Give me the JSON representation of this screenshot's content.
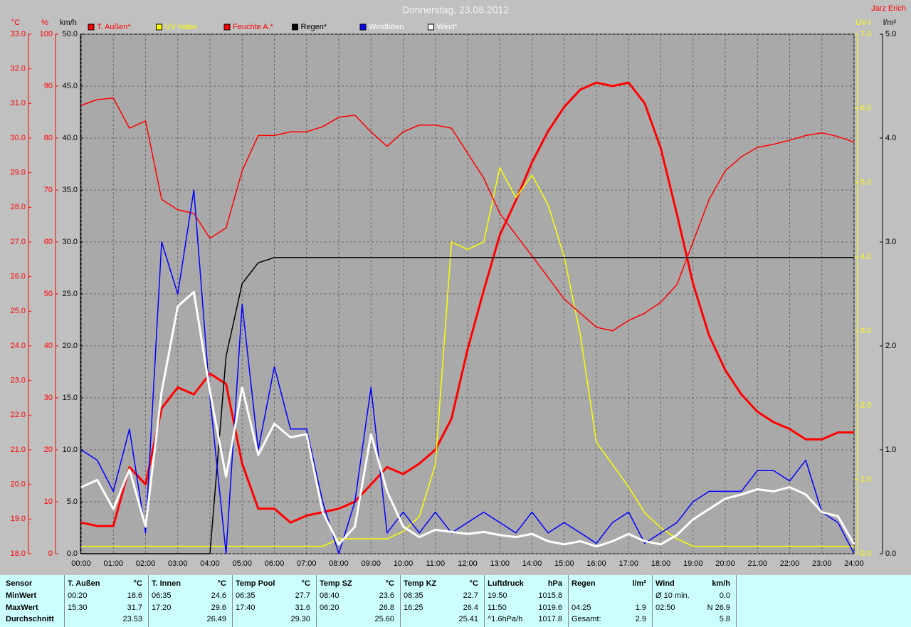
{
  "chart_data": {
    "type": "line",
    "title": "Donnerstag, 23.08.2012",
    "author": "Jarz Erich",
    "grid": true,
    "x": [
      0,
      0.5,
      1,
      1.5,
      2,
      2.5,
      3,
      3.5,
      4,
      4.5,
      5,
      5.5,
      6,
      6.5,
      7,
      7.5,
      8,
      8.5,
      9,
      9.5,
      10,
      10.5,
      11,
      11.5,
      12,
      12.5,
      13,
      13.5,
      14,
      14.5,
      15,
      15.5,
      16,
      16.5,
      17,
      17.5,
      18,
      18.5,
      19,
      19.5,
      20,
      20.5,
      21,
      21.5,
      22,
      22.5,
      23,
      23.5,
      24
    ],
    "xlim": [
      0,
      24
    ],
    "xticks": [
      {
        "value": 0,
        "label": "00:00"
      },
      {
        "value": 1,
        "label": "01:00"
      },
      {
        "value": 2,
        "label": "02:00"
      },
      {
        "value": 3,
        "label": "03:00"
      },
      {
        "value": 4,
        "label": "04:00"
      },
      {
        "value": 5,
        "label": "05:00"
      },
      {
        "value": 6,
        "label": "06:00"
      },
      {
        "value": 7,
        "label": "07:00"
      },
      {
        "value": 8,
        "label": "08:00"
      },
      {
        "value": 9,
        "label": "09:00"
      },
      {
        "value": 10,
        "label": "10:00"
      },
      {
        "value": 11,
        "label": "11:00"
      },
      {
        "value": 12,
        "label": "12:00"
      },
      {
        "value": 13,
        "label": "13:00"
      },
      {
        "value": 14,
        "label": "14:00"
      },
      {
        "value": 15,
        "label": "15:00"
      },
      {
        "value": 16,
        "label": "16:00"
      },
      {
        "value": 17,
        "label": "17:00"
      },
      {
        "value": 18,
        "label": "18:00"
      },
      {
        "value": 19,
        "label": "19:00"
      },
      {
        "value": 20,
        "label": "20:00"
      },
      {
        "value": 21,
        "label": "21:00"
      },
      {
        "value": 22,
        "label": "22:00"
      },
      {
        "value": 23,
        "label": "23:00"
      },
      {
        "value": 24,
        "label": "24:00"
      }
    ],
    "axes": {
      "temp": {
        "label": "°C",
        "color": "#ff0000",
        "lim": [
          18,
          33
        ],
        "ticks": [
          {
            "value": 18,
            "label": "18.0"
          },
          {
            "value": 19,
            "label": "19.0"
          },
          {
            "value": 20,
            "label": "20.0"
          },
          {
            "value": 21,
            "label": "21.0"
          },
          {
            "value": 22,
            "label": "22.0"
          },
          {
            "value": 23,
            "label": "23.0"
          },
          {
            "value": 24,
            "label": "24.0"
          },
          {
            "value": 25,
            "label": "25.0"
          },
          {
            "value": 26,
            "label": "26.0"
          },
          {
            "value": 27,
            "label": "27.0"
          },
          {
            "value": 28,
            "label": "28.0"
          },
          {
            "value": 29,
            "label": "29.0"
          },
          {
            "value": 30,
            "label": "30.0"
          },
          {
            "value": 31,
            "label": "31.0"
          },
          {
            "value": 32,
            "label": "32.0"
          },
          {
            "value": 33,
            "label": "33.0"
          }
        ]
      },
      "hum": {
        "label": "%",
        "color": "#ff0000",
        "lim": [
          0,
          100
        ],
        "ticks": [
          0,
          10,
          20,
          30,
          40,
          50,
          60,
          70,
          80,
          90,
          100
        ]
      },
      "wind": {
        "label": "km/h",
        "color": "#000000",
        "lim": [
          0,
          50
        ],
        "ticks": [
          {
            "value": 0,
            "label": "0.0"
          },
          {
            "value": 5,
            "label": "5.0"
          },
          {
            "value": 10,
            "label": "10.0"
          },
          {
            "value": 15,
            "label": "15.0"
          },
          {
            "value": 20,
            "label": "20.0"
          },
          {
            "value": 25,
            "label": "25.0"
          },
          {
            "value": 30,
            "label": "30.0"
          },
          {
            "value": 35,
            "label": "35.0"
          },
          {
            "value": 40,
            "label": "40.0"
          },
          {
            "value": 45,
            "label": "45.0"
          },
          {
            "value": 50,
            "label": "50.0"
          }
        ]
      },
      "uv": {
        "label": "UV-I",
        "color": "#ffff00",
        "lim": [
          0,
          7
        ],
        "ticks": [
          {
            "value": 0,
            "label": "0.0"
          },
          {
            "value": 1,
            "label": "1.0"
          },
          {
            "value": 2,
            "label": "2.0"
          },
          {
            "value": 3,
            "label": "3.0"
          },
          {
            "value": 4,
            "label": "4.0"
          },
          {
            "value": 5,
            "label": "5.0"
          },
          {
            "value": 6,
            "label": "6.0"
          },
          {
            "value": 7,
            "label": "7.0"
          }
        ]
      },
      "rain": {
        "label": "l/m²",
        "color": "#000000",
        "lim": [
          0,
          5
        ],
        "ticks": [
          {
            "value": 0,
            "label": "0.0"
          },
          {
            "value": 1,
            "label": "1.0"
          },
          {
            "value": 2,
            "label": "2.0"
          },
          {
            "value": 3,
            "label": "3.0"
          },
          {
            "value": 4,
            "label": "4.0"
          },
          {
            "value": 5,
            "label": "5.0"
          }
        ]
      }
    },
    "series": [
      {
        "name": "T. Außen*",
        "color": "#ff0000",
        "axis": "temp",
        "line": "thick",
        "values": [
          18.9,
          18.8,
          18.8,
          20.5,
          20.0,
          22.2,
          22.8,
          22.6,
          23.2,
          22.9,
          20.6,
          19.3,
          19.3,
          18.9,
          19.1,
          19.2,
          19.3,
          19.5,
          20.0,
          20.5,
          20.3,
          20.6,
          21.0,
          21.9,
          23.9,
          25.6,
          27.2,
          28.2,
          29.3,
          30.2,
          30.9,
          31.4,
          31.6,
          31.5,
          31.6,
          31.0,
          29.7,
          27.8,
          25.8,
          24.3,
          23.3,
          22.6,
          22.1,
          21.8,
          21.6,
          21.3,
          21.3,
          21.5,
          21.5
        ]
      },
      {
        "name": "UV Index",
        "color": "#ffff00",
        "axis": "uv",
        "line": "thin",
        "values": [
          0.1,
          0.1,
          0.1,
          0.1,
          0.1,
          0.1,
          0.1,
          0.1,
          0.1,
          0.1,
          0.1,
          0.1,
          0.1,
          0.1,
          0.1,
          0.1,
          0.2,
          0.2,
          0.2,
          0.2,
          0.3,
          0.5,
          1.2,
          4.2,
          4.1,
          4.2,
          5.2,
          4.8,
          5.1,
          4.7,
          4.0,
          2.95,
          1.5,
          1.2,
          0.9,
          0.55,
          0.35,
          0.2,
          0.1,
          0.1,
          0.1,
          0.1,
          0.1,
          0.1,
          0.1,
          0.1,
          0.1,
          0.1,
          0.1
        ]
      },
      {
        "name": "Feuchte A.*",
        "color": "#ff0000",
        "axis": "hum",
        "line": "thin",
        "values": [
          86.3,
          87.4,
          87.7,
          81.9,
          83.3,
          68.2,
          66.2,
          65.5,
          60.7,
          62.7,
          73.7,
          80.5,
          80.5,
          81.2,
          81.2,
          82.2,
          84.0,
          84.4,
          81.2,
          78.4,
          81.2,
          82.5,
          82.5,
          81.9,
          77.1,
          72.3,
          65.5,
          61.4,
          57.3,
          53.2,
          49.0,
          46.3,
          43.6,
          42.9,
          44.9,
          46.3,
          48.4,
          51.8,
          60.0,
          68.2,
          73.7,
          76.4,
          78.2,
          78.8,
          79.6,
          80.5,
          81.0,
          80.3,
          79.2
        ]
      },
      {
        "name": "Regen*",
        "color": "#000000",
        "axis": "rain",
        "line": "thin",
        "values": [
          0,
          0,
          0,
          0,
          0,
          0,
          0,
          0,
          0,
          1.9,
          2.6,
          2.8,
          2.85,
          2.85,
          2.85,
          2.85,
          2.85,
          2.85,
          2.85,
          2.85,
          2.85,
          2.85,
          2.85,
          2.85,
          2.85,
          2.85,
          2.85,
          2.85,
          2.85,
          2.85,
          2.85,
          2.85,
          2.85,
          2.85,
          2.85,
          2.85,
          2.85,
          2.85,
          2.85,
          2.85,
          2.85,
          2.85,
          2.85,
          2.85,
          2.85,
          2.85,
          2.85,
          2.85,
          2.85
        ]
      },
      {
        "name": "Windböen",
        "color": "#0000ff",
        "axis": "wind",
        "line": "thin",
        "values": [
          10,
          9,
          6,
          12,
          2,
          30,
          25,
          35,
          15,
          0,
          24,
          10,
          18,
          12,
          12,
          5,
          0,
          5,
          16,
          2,
          4,
          2,
          4,
          2,
          3,
          4,
          3,
          2,
          4,
          2,
          3,
          2,
          1,
          3,
          4,
          1,
          2,
          3,
          5,
          6,
          6,
          6,
          8,
          8,
          7,
          9,
          4,
          3,
          0
        ]
      },
      {
        "name": "Wind*",
        "color": "#ffffff",
        "axis": "wind",
        "line": "thick",
        "values": [
          6.4,
          7.1,
          4.3,
          8.1,
          2.6,
          15.6,
          23.8,
          25.2,
          15.6,
          7.4,
          16.0,
          9.5,
          12.5,
          11.2,
          11.5,
          4.0,
          0.9,
          2.6,
          11.5,
          6.0,
          2.6,
          1.6,
          2.3,
          2.1,
          1.9,
          2.1,
          1.8,
          1.6,
          1.9,
          1.2,
          0.9,
          1.2,
          0.7,
          1.2,
          1.9,
          1.2,
          0.9,
          1.8,
          3.3,
          4.3,
          5.3,
          5.7,
          6.2,
          6.0,
          6.4,
          5.7,
          4.0,
          3.6,
          0.9
        ]
      }
    ]
  },
  "table": {
    "row_labels": [
      "Sensor",
      "MinWert",
      "MaxWert",
      "Durchschnitt"
    ],
    "groups": [
      {
        "name": "T. Außen",
        "unit": "°C",
        "rows": [
          [
            "00:20",
            "18.6"
          ],
          [
            "15:30",
            "31.7"
          ],
          [
            null,
            "23.53"
          ]
        ]
      },
      {
        "name": "T. Innen",
        "unit": "°C",
        "rows": [
          [
            "06:35",
            "24.6"
          ],
          [
            "17:20",
            "29.6"
          ],
          [
            null,
            "26.49"
          ]
        ]
      },
      {
        "name": "Temp Pool",
        "unit": "°C",
        "rows": [
          [
            "06:35",
            "27.7"
          ],
          [
            "17:40",
            "31.6"
          ],
          [
            null,
            "29.30"
          ]
        ]
      },
      {
        "name": "Temp SZ",
        "unit": "°C",
        "rows": [
          [
            "08:40",
            "23.6"
          ],
          [
            "06:20",
            "26.8"
          ],
          [
            null,
            "25.60"
          ]
        ]
      },
      {
        "name": "Temp KZ",
        "unit": "°C",
        "rows": [
          [
            "08:35",
            "22.7"
          ],
          [
            "16:25",
            "26.4"
          ],
          [
            null,
            "25.41"
          ]
        ]
      },
      {
        "name": "Luftdruck",
        "unit": "hPa",
        "rows": [
          [
            "19:50",
            "1015.8"
          ],
          [
            "11:50",
            "1019.6"
          ],
          [
            "^1.6hPa/h",
            "1017.8"
          ]
        ]
      },
      {
        "name": "Regen",
        "unit": "l/m²",
        "rows": [
          [
            null,
            null
          ],
          [
            "04:25",
            "1.9"
          ],
          [
            "Gesamt:",
            "2.9"
          ]
        ]
      },
      {
        "name": "Wind",
        "unit": "km/h",
        "rows": [
          [
            "Ø 10 min.",
            "0.0"
          ],
          [
            "02:50",
            "N 26.9"
          ],
          [
            null,
            "5.8"
          ]
        ]
      }
    ]
  }
}
